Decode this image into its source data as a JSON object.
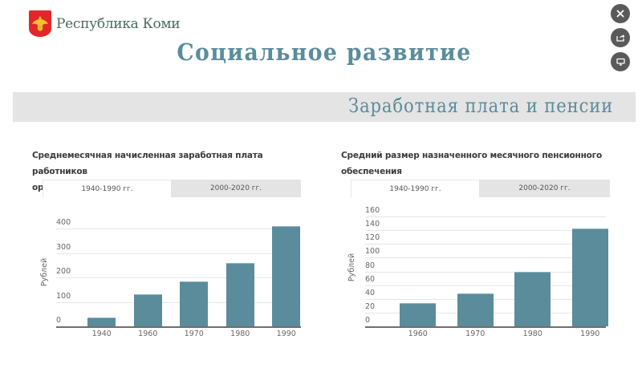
{
  "header": {
    "logo_text": "Республика Коми",
    "page_title": "Социальное развитие",
    "section_title": "Заработная плата и пенсии",
    "side_buttons": [
      {
        "icon": "close-icon"
      },
      {
        "icon": "share-icon"
      },
      {
        "icon": "monitor-icon"
      }
    ]
  },
  "colors": {
    "accent": "#5a8c9c",
    "band": "#e4e4e4",
    "bar": "#5a8c9c",
    "logo_red": "#e3262a"
  },
  "charts": [
    {
      "title_line1": "Среднемесячная начисленная заработная плата работников",
      "title_line2": "организаций",
      "tabs": [
        "1940-1990 гг.",
        "2000-2020 гг."
      ],
      "active_tab": 0,
      "ylabel": "Рублей"
    },
    {
      "title_line1": "Средний размер назначенного месячного пенсионного",
      "title_line2": "обеспечения",
      "tabs": [
        "1940-1990 гг.",
        "2000-2020 гг."
      ],
      "active_tab": 0,
      "ylabel": "Рублей"
    }
  ],
  "chart_data": [
    {
      "type": "bar",
      "title": "Среднемесячная начисленная заработная плата работников организаций",
      "categories": [
        "1940",
        "1960",
        "1970",
        "1980",
        "1990"
      ],
      "values": [
        35,
        131,
        185,
        260,
        411
      ],
      "xlabel": "",
      "ylabel": "Рублей",
      "ylim": [
        0,
        400
      ],
      "yticks": [
        0,
        100,
        200,
        300,
        400
      ],
      "grid": true,
      "legend": null
    },
    {
      "type": "bar",
      "title": "Средний размер назначенного месячного пенсионного обеспечения",
      "categories": [
        "1960",
        "1970",
        "1980",
        "1990"
      ],
      "values": [
        34,
        48,
        80,
        143
      ],
      "xlabel": "",
      "ylabel": "Рублей",
      "ylim": [
        0,
        160
      ],
      "yticks": [
        0,
        20,
        40,
        60,
        80,
        100,
        120,
        140,
        160
      ],
      "grid": true,
      "legend": null
    }
  ]
}
